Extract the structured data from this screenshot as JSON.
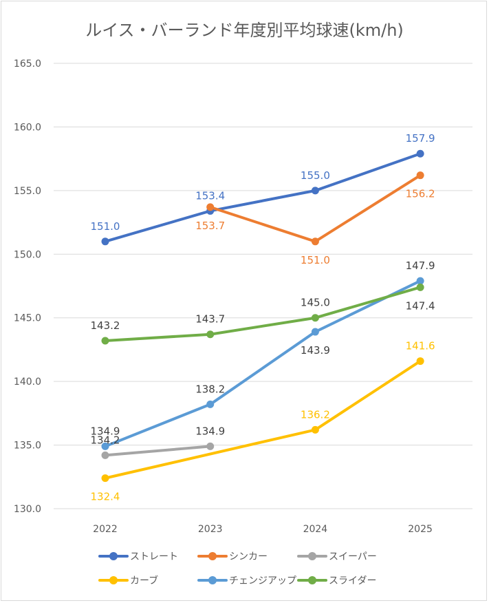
{
  "chart_data": {
    "type": "line",
    "title": "ルイス・バーランド年度別平均球速(km/h)",
    "xlabel": "",
    "ylabel": "",
    "categories": [
      "2022",
      "2023",
      "2024",
      "2025"
    ],
    "ylim": [
      130,
      165
    ],
    "yticks": [
      "130.0",
      "135.0",
      "140.0",
      "145.0",
      "150.0",
      "155.0",
      "160.0",
      "165.0"
    ],
    "grid": true,
    "legend_position": "bottom",
    "series": [
      {
        "name": "ストレート",
        "color": "#4472C4",
        "label_color": "#4472C4",
        "values": [
          151.0,
          153.4,
          155.0,
          157.9
        ],
        "labels": [
          "151.0",
          "153.4",
          "155.0",
          "157.9"
        ],
        "label_pos": [
          "above",
          "above",
          "above",
          "above"
        ]
      },
      {
        "name": "シンカー",
        "color": "#ED7D31",
        "label_color": "#ED7D31",
        "values": [
          null,
          153.7,
          151.0,
          156.2
        ],
        "labels": [
          null,
          "153.7",
          "151.0",
          "156.2"
        ],
        "label_pos": [
          null,
          "below",
          "below",
          "below"
        ]
      },
      {
        "name": "スイーパー",
        "color": "#A5A5A5",
        "label_color": "#404040",
        "values": [
          134.2,
          134.9,
          null,
          null
        ],
        "labels": [
          "134.2",
          "134.9",
          null,
          null
        ],
        "label_pos": [
          "above",
          "above",
          null,
          null
        ]
      },
      {
        "name": "カーブ",
        "color": "#FFC000",
        "label_color": "#FFC000",
        "values": [
          132.4,
          null,
          136.2,
          141.6
        ],
        "labels": [
          "132.4",
          null,
          "136.2",
          "141.6"
        ],
        "label_pos": [
          "below",
          null,
          "above",
          "above"
        ]
      },
      {
        "name": "チェンジアップ",
        "color": "#5B9BD5",
        "label_color": "#404040",
        "values": [
          134.9,
          138.2,
          143.9,
          147.9
        ],
        "labels": [
          "134.9",
          "138.2",
          "143.9",
          "147.9"
        ],
        "label_pos": [
          "above",
          "above",
          "below",
          "above"
        ]
      },
      {
        "name": "スライダー",
        "color": "#70AD47",
        "label_color": "#404040",
        "values": [
          143.2,
          143.7,
          145.0,
          147.4
        ],
        "labels": [
          "143.2",
          "143.7",
          "145.0",
          "147.4"
        ],
        "label_pos": [
          "above",
          "above",
          "above",
          "below"
        ]
      }
    ]
  }
}
